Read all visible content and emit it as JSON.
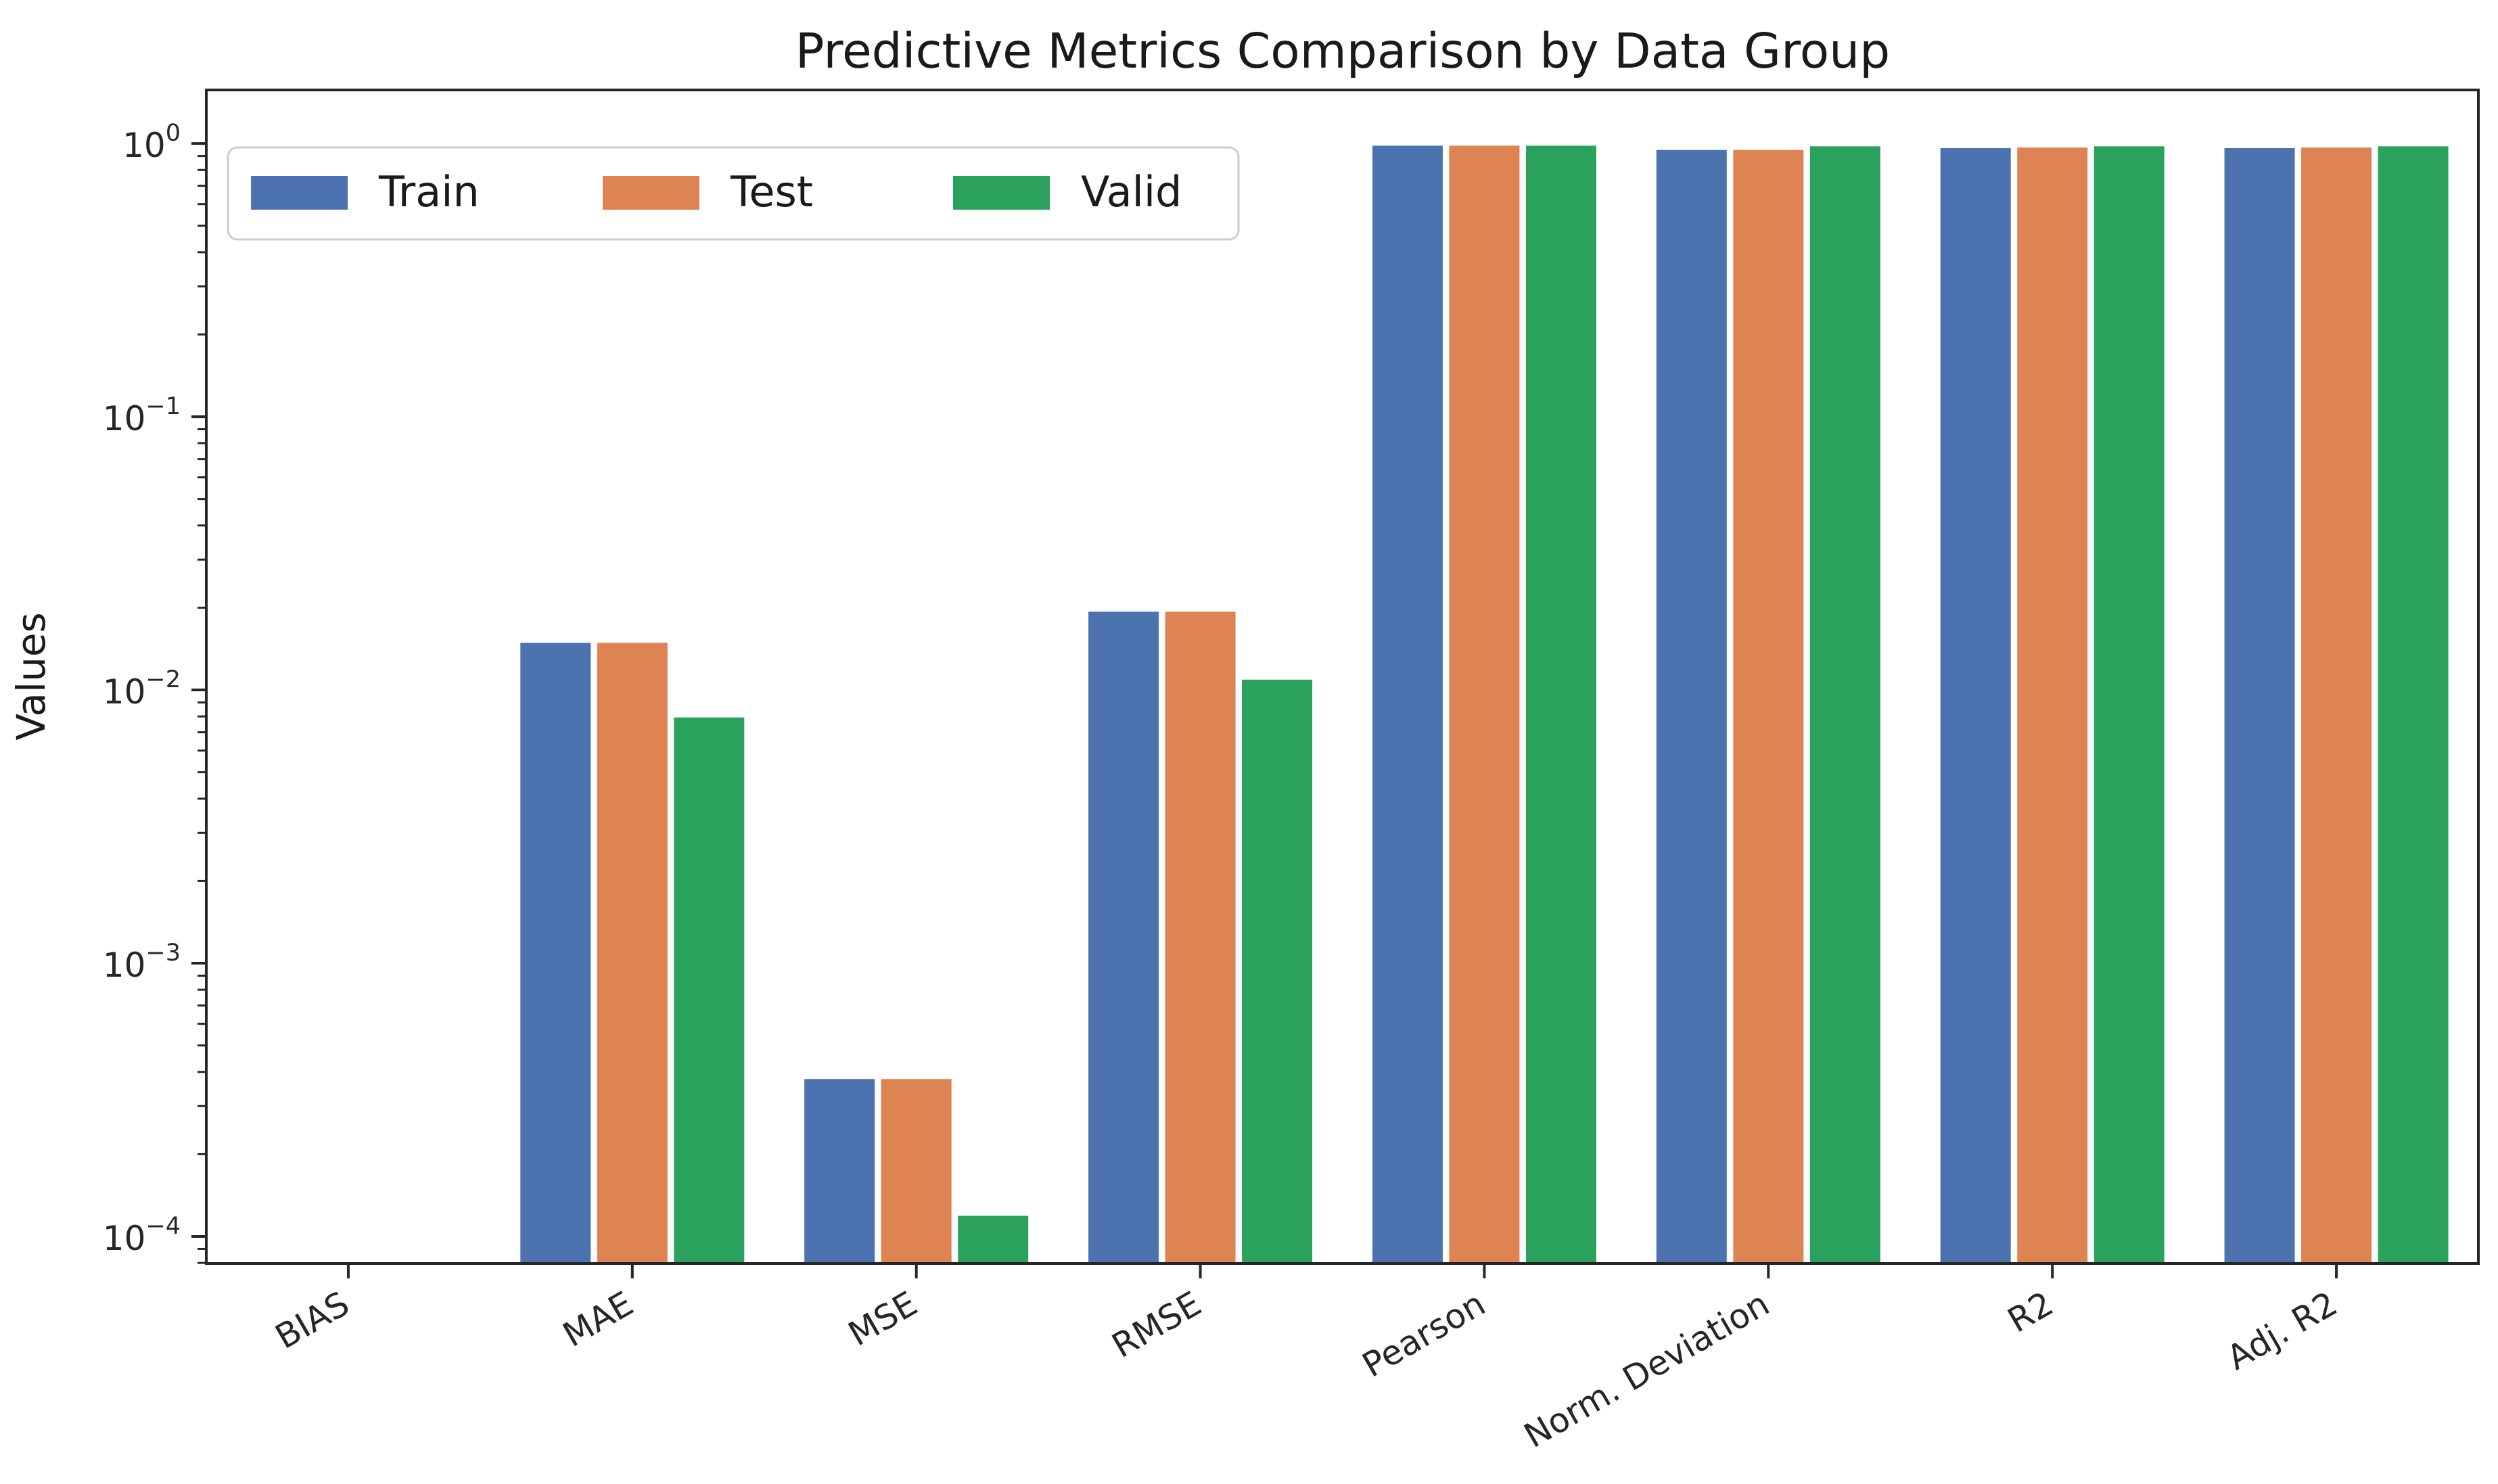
{
  "figure": {
    "title": "Predictive Metrics Comparison by Data Group",
    "background": "#ffffff",
    "axis_color": "#262626",
    "text_color": "#1a1a1a"
  },
  "legend": {
    "position": "upper left",
    "entries": [
      {
        "label": "Train",
        "color": "#4C72B0"
      },
      {
        "label": "Test",
        "color": "#DD8452"
      },
      {
        "label": "Valid",
        "color": "#2BA15E"
      }
    ]
  },
  "chart_data": {
    "type": "bar",
    "title": "Predictive Metrics Comparison by Data Group",
    "xlabel": "",
    "ylabel": "Values",
    "yscale": "log",
    "ylim": [
      7.96e-05,
      1.57
    ],
    "ytick_exponents": [
      0,
      -1,
      -2,
      -3,
      -4
    ],
    "x_tick_rotation_deg": 30,
    "grid": false,
    "legend_position": "upper left",
    "bar_edge_color": "#ffffff",
    "categories": [
      "BIAS",
      "MAE",
      "MSE",
      "RMSE",
      "Pearson",
      "Norm. Deviation",
      "R2",
      "Adj. R2"
    ],
    "series": [
      {
        "name": "Train",
        "color": "#4C72B0",
        "values": [
          0,
          0.015,
          0.00038,
          0.0195,
          0.99,
          0.955,
          0.97,
          0.97
        ]
      },
      {
        "name": "Test",
        "color": "#DD8452",
        "values": [
          0,
          0.015,
          0.00038,
          0.0195,
          0.99,
          0.955,
          0.975,
          0.975
        ]
      },
      {
        "name": "Valid",
        "color": "#2BA15E",
        "values": [
          0,
          0.008,
          0.00012,
          0.011,
          0.99,
          0.985,
          0.985,
          0.985
        ]
      }
    ],
    "note_bias": "BIAS bars not visible (values ~0, below log-axis floor)"
  }
}
